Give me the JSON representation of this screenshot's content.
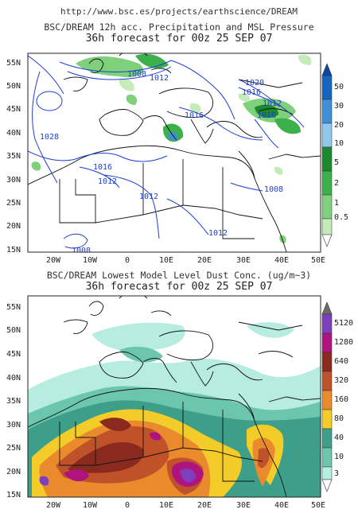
{
  "header": {
    "url": "http://www.bsc.es/projects/earthscience/DREAM"
  },
  "panels": [
    {
      "id": "precip",
      "title_line1": "BSC/DREAM 12h acc. Precipitation and MSL Pressure",
      "title_line2": "36h forecast for 00z 25 SEP 07",
      "lat_labels": [
        "55N",
        "50N",
        "45N",
        "40N",
        "35N",
        "30N",
        "25N",
        "20N",
        "15N"
      ],
      "lon_labels": [
        "20W",
        "10W",
        "0",
        "10E",
        "20E",
        "30E",
        "40E",
        "50E"
      ],
      "colorbar": {
        "labels": [
          "50",
          "30",
          "20",
          "10",
          "5",
          "2",
          "1",
          "0.5"
        ],
        "colors": [
          "#1565c0",
          "#3f8fd6",
          "#8fc6ee",
          "#1b8a2e",
          "#3cb04a",
          "#7fd07a",
          "#c4ecb8"
        ],
        "top_arrow_color": "#0d47a1",
        "bottom_arrow_color": "#ffffff"
      },
      "isobar_labels": [
        "1008",
        "1012",
        "1028",
        "1016",
        "1020",
        "1016",
        "1012",
        "1016",
        "1016",
        "1012",
        "1012",
        "1008",
        "1012",
        "1008"
      ]
    },
    {
      "id": "dust",
      "title_line1": "BSC/DREAM Lowest Model Level Dust Conc. (ug/m~3)",
      "title_line2": "36h forecast for 00z 25 SEP 07",
      "lat_labels": [
        "55N",
        "50N",
        "45N",
        "40N",
        "35N",
        "30N",
        "25N",
        "20N",
        "15N"
      ],
      "lon_labels": [
        "20W",
        "10W",
        "0",
        "10E",
        "20E",
        "30E",
        "40E",
        "50E"
      ],
      "colorbar": {
        "labels": [
          "5120",
          "1280",
          "640",
          "320",
          "160",
          "80",
          "40",
          "10",
          "3"
        ],
        "colors": [
          "#7d3fbd",
          "#b0127f",
          "#8a2a1f",
          "#c0522a",
          "#e98a2d",
          "#f4cc2a",
          "#3d9e8a",
          "#6cc6ae",
          "#b7ece0"
        ],
        "top_arrow_color": "#6b6b6b",
        "bottom_arrow_color": "#ffffff"
      }
    }
  ]
}
